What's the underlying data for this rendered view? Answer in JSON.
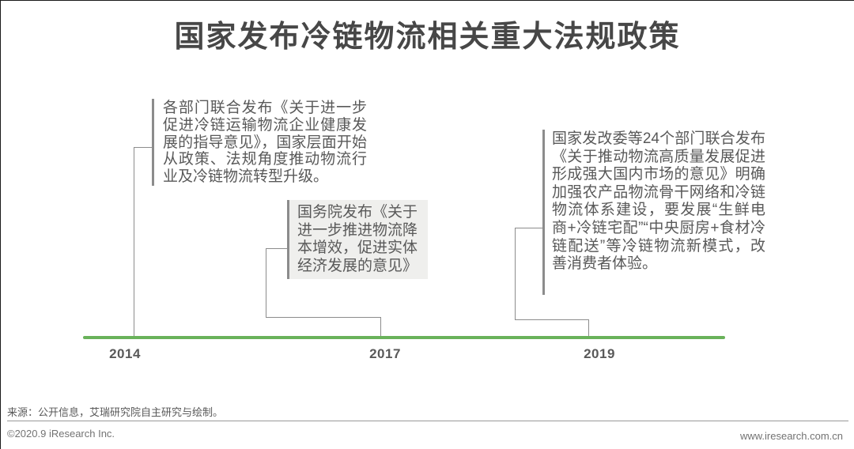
{
  "page": {
    "title": "国家发布冷链物流相关重大法规政策"
  },
  "timeline": {
    "years": [
      "2014",
      "2017",
      "2019"
    ]
  },
  "events": [
    {
      "year": "2014",
      "text": "各部门联合发布《关于进一步促进冷链运输物流企业健康发展的指导意见》，国家层面开始从政策、法规角度推动物流行业及冷链物流转型升级。",
      "highlighted": false
    },
    {
      "year": "2017",
      "text": "国务院发布《关于进一步推进物流降本增效，促进实体经济发展的意见》",
      "highlighted": true
    },
    {
      "year": "2019",
      "text": "国家发改委等24个部门联合发布《关于推动物流高质量发展促进形成强大国内市场的意见》明确加强农产品物流骨干网络和冷链物流体系建设，要发展“生鲜电商+冷链宅配”“中央厨房+食材冷链配送”等冷链物流新模式，改善消费者体验。",
      "highlighted": false
    }
  ],
  "footer": {
    "source_note": "来源：公开信息，艾瑞研究院自主研究与绘制。",
    "copyright": "©2020.9 iResearch Inc.",
    "website": "www.iresearch.com.cn"
  },
  "colors": {
    "accent_green": "#69b25a",
    "title_text": "#474747",
    "body_text": "#595959",
    "connector": "#8c8c8c",
    "bar": "#8c8c8c",
    "box_bg": "#efefed",
    "footer_text": "#737373",
    "divider": "#999999"
  }
}
